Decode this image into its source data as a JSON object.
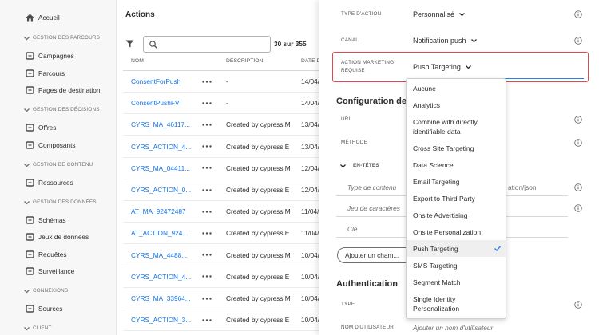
{
  "sidebar": {
    "home": "Accueil",
    "sections": [
      {
        "title": "GESTION DES PARCOURS",
        "items": [
          "Campagnes",
          "Parcours",
          "Pages de destination"
        ]
      },
      {
        "title": "GESTION DES DÉCISIONS",
        "items": [
          "Offres",
          "Composants"
        ]
      },
      {
        "title": "GESTION DE CONTENU",
        "items": [
          "Ressources"
        ]
      },
      {
        "title": "GESTION DES DONNÉES",
        "items": [
          "Schémas",
          "Jeux de données",
          "Requêtes",
          "Surveillance"
        ]
      },
      {
        "title": "CONNEXIONS",
        "items": [
          "Sources"
        ]
      },
      {
        "title": "CLIENT",
        "items": []
      }
    ]
  },
  "actions": {
    "title": "Actions",
    "count": "30 sur 355",
    "columns": [
      "NOM",
      "DESCRIPTION",
      "DATE DE"
    ],
    "rows": [
      [
        "ConsentForPush",
        "-",
        "14/04/"
      ],
      [
        "ConsentPushFVI",
        "-",
        "14/04/"
      ],
      [
        "CYRS_MA_46117...",
        "Created by cypress M",
        "13/04/"
      ],
      [
        "CYRS_ACTION_4...",
        "Created by cypress E",
        "13/04/"
      ],
      [
        "CYRS_MA_04411...",
        "Created by cypress M",
        "12/04/"
      ],
      [
        "CYRS_ACTION_0...",
        "Created by cypress E",
        "12/04/"
      ],
      [
        "AT_MA_92472487",
        "Created by cypress M",
        "11/04/"
      ],
      [
        "AT_ACTION_924...",
        "Created by cypress E",
        "11/04/"
      ],
      [
        "CYRS_MA_4488...",
        "Created by cypress M",
        "10/04/"
      ],
      [
        "CYRS_ACTION_4...",
        "Created by cypress E",
        "10/04/"
      ],
      [
        "CYRS_MA_33964...",
        "Created by cypress M",
        "10/04/"
      ],
      [
        "CYRS_ACTION_3...",
        "Created by cypress E",
        "10/04/"
      ]
    ]
  },
  "panel": {
    "fields": [
      {
        "label": "TYPE D'ACTION",
        "value": "Personnalisé"
      },
      {
        "label": "CANAL",
        "value": "Notification push"
      },
      {
        "label": "ACTION MARKETING REQUISE",
        "value": "Push Targeting"
      }
    ],
    "configuration": {
      "title": "Configuration de l",
      "fields": [
        "URL",
        "MÉTHODE"
      ],
      "headers_title": "EN-TÊTES",
      "headers": [
        {
          "label": "Type de contenu",
          "value": "ation/json"
        },
        {
          "label": "Jeu de caractères"
        },
        {
          "label": "Clé"
        }
      ],
      "add_button": "Ajouter un cham..."
    },
    "authentication": {
      "title": "Authentication",
      "fields": [
        {
          "label": "TYPE"
        },
        {
          "label": "NOM D'UTILISATEUR",
          "placeholder": "Ajouter un nom d'utilisateur"
        }
      ]
    }
  },
  "dropdown": {
    "options": [
      "Aucune",
      "Analytics",
      "Combine with directly identifiable data",
      "Cross Site Targeting",
      "Data Science",
      "Email Targeting",
      "Export to Third Party",
      "Onsite Advertising",
      "Onsite Personalization",
      "Push Targeting",
      "SMS Targeting",
      "Segment Match",
      "Single Identity Personalization"
    ],
    "selected_index": 9
  }
}
